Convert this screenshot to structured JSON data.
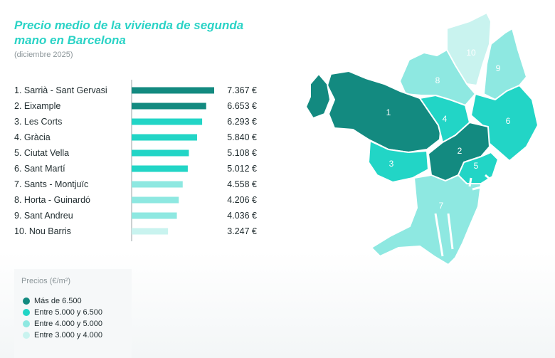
{
  "header": {
    "title": "Precio medio de la vivienda de segunda mano en Barcelona",
    "subtitle": "(diciembre 2025)"
  },
  "chart_data": {
    "type": "bar",
    "orientation": "horizontal",
    "categories": [
      "1. Sarrià - Sant Gervasi",
      "2. Eixample",
      "3. Les Corts",
      "4. Gràcia",
      "5. Ciutat Vella",
      "6. Sant Martí",
      "7. Sants - Montjuïc",
      "8. Horta - Guinardó",
      "9. Sant Andreu",
      "10. Nou Barris"
    ],
    "values": [
      7367,
      6653,
      6293,
      5840,
      5108,
      5012,
      4558,
      4206,
      4036,
      3247
    ],
    "value_labels": [
      "7.367 €",
      "6.653 €",
      "6.293 €",
      "5.840 €",
      "5.108 €",
      "5.012 €",
      "4.558 €",
      "4.206 €",
      "4.036 €",
      "3.247 €"
    ],
    "xlim": [
      0,
      7367
    ],
    "grid": false
  },
  "colors": {
    "title": "#2bd3c6",
    "tier1": "#138a80",
    "tier2": "#22d5c6",
    "tier3": "#8ee8e1",
    "tier4": "#c9f3ef",
    "axis": "#9aa3a6"
  },
  "map": {
    "districts": [
      {
        "num": "1",
        "tier": 1
      },
      {
        "num": "2",
        "tier": 1
      },
      {
        "num": "3",
        "tier": 2
      },
      {
        "num": "4",
        "tier": 2
      },
      {
        "num": "5",
        "tier": 2
      },
      {
        "num": "6",
        "tier": 2
      },
      {
        "num": "7",
        "tier": 3
      },
      {
        "num": "8",
        "tier": 3
      },
      {
        "num": "9",
        "tier": 3
      },
      {
        "num": "10",
        "tier": 4
      }
    ]
  },
  "legend": {
    "title": "Precios (€/m²)",
    "items": [
      {
        "label": "Más de 6.500",
        "tier": 1
      },
      {
        "label": "Entre 5.000 y 6.500",
        "tier": 2
      },
      {
        "label": "Entre 4.000 y 5.000",
        "tier": 3
      },
      {
        "label": "Entre 3.000 y 4.000",
        "tier": 4
      }
    ]
  }
}
